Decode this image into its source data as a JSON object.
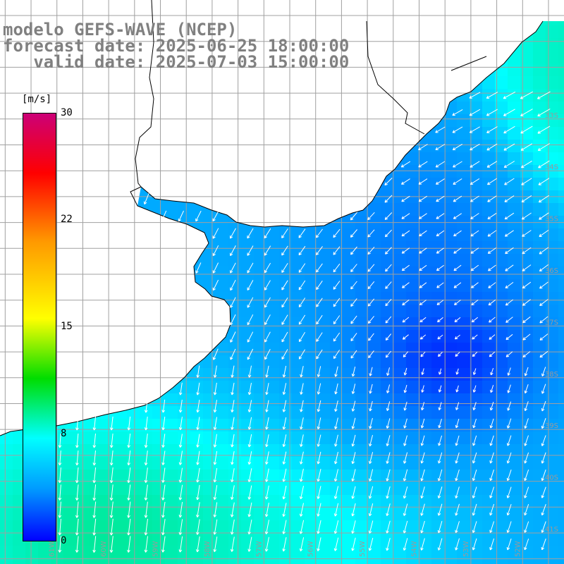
{
  "header": {
    "line1": "modelo GEFS-WAVE (NCEP)",
    "line2": "forecast date: 2025-06-25 18:00:00",
    "line3": "   valid date: 2025-07-03 15:00:00"
  },
  "colorbar": {
    "unit": "[m/s]",
    "ticks": [
      "30",
      "22",
      "15",
      "8",
      "0"
    ],
    "colors": [
      "#0000ff",
      "#0099ff",
      "#00ffff",
      "#00dd00",
      "#ffff00",
      "#ff9900",
      "#ff0000",
      "#cc0077"
    ]
  },
  "map": {
    "lat_labels": [
      "33S",
      "34S",
      "35S",
      "36S",
      "37S",
      "38S",
      "39S",
      "40S",
      "41S"
    ],
    "lon_labels": [
      "61W",
      "60W",
      "59W",
      "58W",
      "57W",
      "56W",
      "55W",
      "54W",
      "53W",
      "52W",
      "51W"
    ],
    "extent": {
      "lon_min": -62.1,
      "lon_max": -51.2,
      "lat_min": -41.6,
      "lat_max": -30.7
    },
    "land_color": "#ffffff",
    "grid_color": "#a0a0a0",
    "coast_color": "#000000",
    "arrow_color": "#ffffff"
  }
}
